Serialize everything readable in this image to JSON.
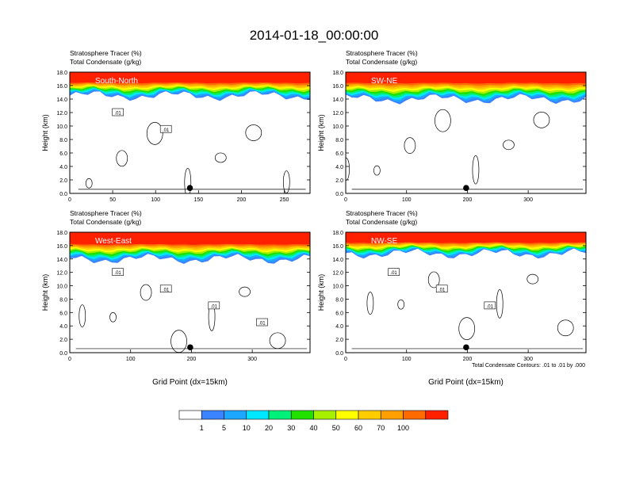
{
  "figure": {
    "title": "2014-01-18_00:00:00",
    "contour_note": "Total Condensate Contours: .01 to .01 by .000",
    "xlabel": "Grid Point (dx=15km)"
  },
  "colorbar": {
    "labels": [
      "1",
      "5",
      "10",
      "20",
      "30",
      "40",
      "50",
      "60",
      "70",
      "100"
    ],
    "colors": [
      "#ffffff",
      "#3a84ff",
      "#1ea7ff",
      "#00e8ff",
      "#00f07a",
      "#22e000",
      "#a6f000",
      "#ffff00",
      "#ffcc00",
      "#ffa000",
      "#ff6a00",
      "#ff2000"
    ]
  },
  "chart_data": [
    {
      "type": "heatmap",
      "panel_label": "South-North",
      "title_line1": "Stratosphere Tracer   (%)",
      "title_line2": "Total Condensate   (g/kg)",
      "ylabel": "Height (km)",
      "xlabel": "",
      "xlim": [
        0,
        280
      ],
      "ylim": [
        0,
        18
      ],
      "xticks": [
        0,
        50,
        100,
        150,
        200,
        250
      ],
      "yticks": [
        0.0,
        2.0,
        4.0,
        6.0,
        8.0,
        10.0,
        12.0,
        14.0,
        16.0,
        18.0
      ],
      "contour_labels": [
        ".01",
        ".01"
      ],
      "marker_x": 140,
      "tracer_band": {
        "top": 18,
        "red_bottom": 16.6,
        "low_bottom": 14.5
      }
    },
    {
      "type": "heatmap",
      "panel_label": "SW-NE",
      "title_line1": "Stratosphere Tracer   (%)",
      "title_line2": "Total Condensate   (g/kg)",
      "ylabel": "Height (km)",
      "xlabel": "",
      "xlim": [
        0,
        395
      ],
      "ylim": [
        0,
        18
      ],
      "xticks": [
        0,
        100,
        200,
        300
      ],
      "yticks": [
        0.0,
        2.0,
        4.0,
        6.0,
        8.0,
        10.0,
        12.0,
        14.0,
        16.0,
        18.0
      ],
      "contour_labels": [],
      "marker_x": 198,
      "tracer_band": {
        "top": 18,
        "red_bottom": 16.6,
        "low_bottom": 14.0
      }
    },
    {
      "type": "heatmap",
      "panel_label": "West-East",
      "title_line1": "Stratosphere Tracer   (%)",
      "title_line2": "Total Condensate   (g/kg)",
      "ylabel": "Height (km)",
      "xlabel": "Grid Point (dx=15km)",
      "xlim": [
        0,
        395
      ],
      "ylim": [
        0,
        18
      ],
      "xticks": [
        0,
        100,
        200,
        300
      ],
      "yticks": [
        0.0,
        2.0,
        4.0,
        6.0,
        8.0,
        10.0,
        12.0,
        14.0,
        16.0,
        18.0
      ],
      "contour_labels": [
        ".01",
        ".01",
        ".01",
        ".01"
      ],
      "marker_x": 198,
      "tracer_band": {
        "top": 18,
        "red_bottom": 16.4,
        "low_bottom": 14.0
      }
    },
    {
      "type": "heatmap",
      "panel_label": "NW-SE",
      "title_line1": "Stratosphere Tracer   (%)",
      "title_line2": "Total Condensate   (g/kg)",
      "ylabel": "Height (km)",
      "xlabel": "Grid Point (dx=15km)",
      "xlim": [
        0,
        395
      ],
      "ylim": [
        0,
        18
      ],
      "xticks": [
        0,
        100,
        200,
        300
      ],
      "yticks": [
        0.0,
        2.0,
        4.0,
        6.0,
        8.0,
        10.0,
        12.0,
        14.0,
        16.0,
        18.0
      ],
      "contour_labels": [
        ".01",
        ".01",
        ".01"
      ],
      "marker_x": 198,
      "tracer_band": {
        "top": 18,
        "red_bottom": 16.6,
        "low_bottom": 14.8
      }
    }
  ]
}
